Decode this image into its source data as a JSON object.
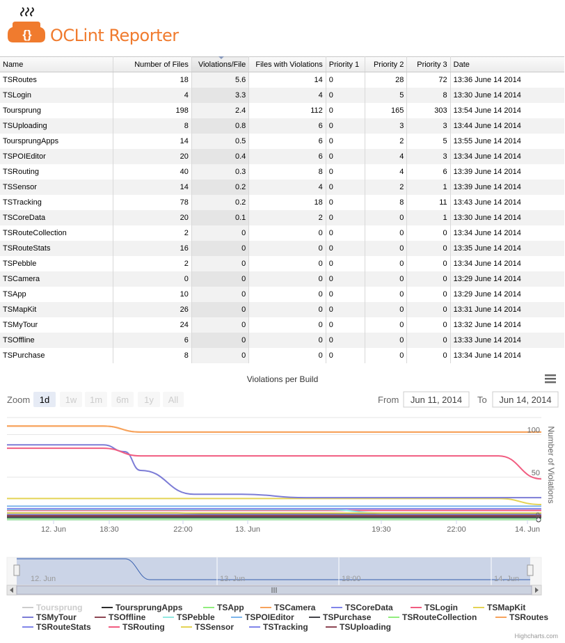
{
  "app": {
    "title": "OCLint Reporter"
  },
  "table": {
    "columns": [
      "Name",
      "Number of Files",
      "Violations/File",
      "Files with Violations",
      "Priority 1",
      "Priority 2",
      "Priority 3",
      "Date"
    ],
    "rows": [
      [
        "TSRoutes",
        "18",
        "5.6",
        "14",
        "0",
        "28",
        "72",
        "13:36 June 14 2014"
      ],
      [
        "TSLogin",
        "4",
        "3.3",
        "4",
        "0",
        "5",
        "8",
        "13:30 June 14 2014"
      ],
      [
        "Toursprung",
        "198",
        "2.4",
        "112",
        "0",
        "165",
        "303",
        "13:54 June 14 2014"
      ],
      [
        "TSUploading",
        "8",
        "0.8",
        "6",
        "0",
        "3",
        "3",
        "13:44 June 14 2014"
      ],
      [
        "ToursprungApps",
        "14",
        "0.5",
        "6",
        "0",
        "2",
        "5",
        "13:55 June 14 2014"
      ],
      [
        "TSPOIEditor",
        "20",
        "0.4",
        "6",
        "0",
        "4",
        "3",
        "13:34 June 14 2014"
      ],
      [
        "TSRouting",
        "40",
        "0.3",
        "8",
        "0",
        "4",
        "6",
        "13:39 June 14 2014"
      ],
      [
        "TSSensor",
        "14",
        "0.2",
        "4",
        "0",
        "2",
        "1",
        "13:39 June 14 2014"
      ],
      [
        "TSTracking",
        "78",
        "0.2",
        "18",
        "0",
        "8",
        "11",
        "13:43 June 14 2014"
      ],
      [
        "TSCoreData",
        "20",
        "0.1",
        "2",
        "0",
        "0",
        "1",
        "13:30 June 14 2014"
      ],
      [
        "TSRouteCollection",
        "2",
        "0",
        "0",
        "0",
        "0",
        "0",
        "13:34 June 14 2014"
      ],
      [
        "TSRouteStats",
        "16",
        "0",
        "0",
        "0",
        "0",
        "0",
        "13:35 June 14 2014"
      ],
      [
        "TSPebble",
        "2",
        "0",
        "0",
        "0",
        "0",
        "0",
        "13:34 June 14 2014"
      ],
      [
        "TSCamera",
        "0",
        "0",
        "0",
        "0",
        "0",
        "0",
        "13:29 June 14 2014"
      ],
      [
        "TSApp",
        "10",
        "0",
        "0",
        "0",
        "0",
        "0",
        "13:29 June 14 2014"
      ],
      [
        "TSMapKit",
        "26",
        "0",
        "0",
        "0",
        "0",
        "0",
        "13:31 June 14 2014"
      ],
      [
        "TSMyTour",
        "24",
        "0",
        "0",
        "0",
        "0",
        "0",
        "13:32 June 14 2014"
      ],
      [
        "TSOffline",
        "6",
        "0",
        "0",
        "0",
        "0",
        "0",
        "13:33 June 14 2014"
      ],
      [
        "TSPurchase",
        "8",
        "0",
        "0",
        "0",
        "0",
        "0",
        "13:34 June 14 2014"
      ]
    ]
  },
  "chart_data": {
    "type": "line",
    "title": "Violations per Build",
    "ylabel": "Number of Violations",
    "y_ticks": [
      "100",
      "50",
      "0"
    ],
    "x_ticks": [
      "12. Jun",
      "18:30",
      "22:00",
      "13. Jun",
      "19:30",
      "22:00",
      "14. Jun"
    ],
    "ylim": [
      0,
      120
    ],
    "grid": true,
    "legend_position": "bottom",
    "series": [
      {
        "name": "Toursprung",
        "color": "#cccccc",
        "hidden": true,
        "values": []
      },
      {
        "name": "ToursprungApps",
        "color": "#2b2b2b",
        "values": [
          [
            0,
            8
          ],
          [
            30,
            8
          ],
          [
            40,
            7
          ],
          [
            100,
            7
          ]
        ]
      },
      {
        "name": "TSApp",
        "color": "#90ed7d",
        "values": [
          [
            0,
            0
          ],
          [
            100,
            0
          ]
        ]
      },
      {
        "name": "TSCamera",
        "color": "#f7a35c",
        "values": [
          [
            0,
            110
          ],
          [
            18,
            110
          ],
          [
            25,
            103
          ],
          [
            100,
            103
          ]
        ]
      },
      {
        "name": "TSCoreData",
        "color": "#8085e9",
        "values": [
          [
            0,
            2
          ],
          [
            100,
            2
          ]
        ]
      },
      {
        "name": "TSLogin",
        "color": "#f15c80",
        "values": [
          [
            0,
            11
          ],
          [
            100,
            11
          ]
        ]
      },
      {
        "name": "TSMapKit",
        "color": "#e4d354",
        "values": [
          [
            0,
            25
          ],
          [
            92,
            25
          ],
          [
            100,
            18
          ]
        ]
      },
      {
        "name": "TSMyTour",
        "color": "#7c7cd6",
        "values": [
          [
            0,
            88
          ],
          [
            18,
            88
          ],
          [
            22,
            80
          ],
          [
            25,
            58
          ],
          [
            35,
            30
          ],
          [
            44,
            30
          ],
          [
            56,
            26
          ],
          [
            100,
            26
          ]
        ]
      },
      {
        "name": "TSOffline",
        "color": "#8d4653",
        "values": [
          [
            0,
            4
          ],
          [
            100,
            4
          ]
        ]
      },
      {
        "name": "TSPebble",
        "color": "#91e8e1",
        "values": [
          [
            0,
            12
          ],
          [
            60,
            12
          ],
          [
            70,
            8
          ],
          [
            100,
            8
          ]
        ]
      },
      {
        "name": "TSPOIEditor",
        "color": "#7cb5ec",
        "values": [
          [
            0,
            16
          ],
          [
            100,
            16
          ]
        ]
      },
      {
        "name": "TSPurchase",
        "color": "#434348",
        "values": [
          [
            0,
            3
          ],
          [
            100,
            3
          ]
        ]
      },
      {
        "name": "TSRouteCollection",
        "color": "#90ed7d",
        "values": [
          [
            0,
            1
          ],
          [
            100,
            1
          ]
        ]
      },
      {
        "name": "TSRoutes",
        "color": "#f7a35c",
        "values": [
          [
            0,
            110
          ],
          [
            18,
            110
          ],
          [
            25,
            103
          ],
          [
            100,
            103
          ]
        ]
      },
      {
        "name": "TSRouteStats",
        "color": "#8085e9",
        "values": [
          [
            0,
            13
          ],
          [
            100,
            13
          ]
        ]
      },
      {
        "name": "TSRouting",
        "color": "#f15c80",
        "values": [
          [
            0,
            84
          ],
          [
            18,
            84
          ],
          [
            25,
            75
          ],
          [
            92,
            75
          ],
          [
            100,
            48
          ]
        ]
      },
      {
        "name": "TSSensor",
        "color": "#e4d354",
        "values": [
          [
            0,
            8
          ],
          [
            100,
            8
          ]
        ]
      },
      {
        "name": "TSTracking",
        "color": "#8085e9",
        "values": [
          [
            0,
            6
          ],
          [
            100,
            6
          ]
        ]
      },
      {
        "name": "TSUploading",
        "color": "#8d4653",
        "values": [
          [
            0,
            5
          ],
          [
            100,
            5
          ]
        ]
      }
    ]
  },
  "chart_ui": {
    "zoom_label": "Zoom",
    "zoom_buttons": [
      "1d",
      "1w",
      "1m",
      "6m",
      "1y",
      "All"
    ],
    "from_label": "From",
    "from_value": "Jun 11, 2014",
    "to_label": "To",
    "to_value": "Jun 14, 2014",
    "navigator_ticks": [
      "12. Jun",
      "13. Jun",
      "18:00",
      "14. Jun"
    ],
    "credits": "Highcharts.com"
  },
  "colors": {
    "brand": "#f07b2e",
    "highcharts_blue": "#335cad"
  },
  "icons": {
    "logo": "curly-braces-logo-icon",
    "menu": "hamburger-menu-icon"
  }
}
